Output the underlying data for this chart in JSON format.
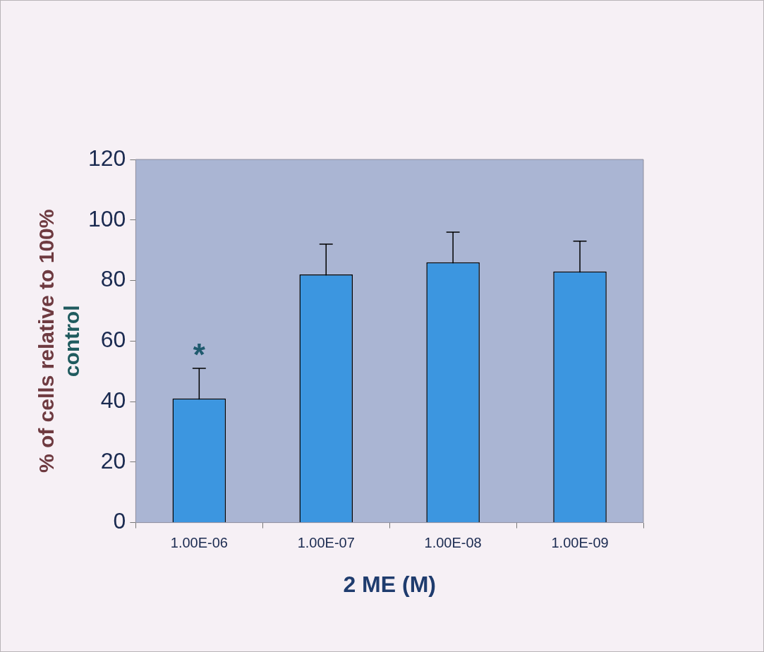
{
  "chart_data": {
    "type": "bar",
    "xlabel": "2 ME (M)",
    "ylabel": "% of cells relative to 100% control",
    "categories": [
      "1.00E-06",
      "1.00E-07",
      "1.00E-08",
      "1.00E-09"
    ],
    "values": [
      41,
      82,
      86,
      83
    ],
    "errors": [
      10,
      10,
      10,
      10
    ],
    "color": "#3c96e0",
    "ylim": [
      0,
      120
    ],
    "yticks": [
      0,
      20,
      40,
      60,
      80,
      100,
      120
    ],
    "grid": false,
    "legend": false,
    "annotations": [
      "*"
    ]
  }
}
